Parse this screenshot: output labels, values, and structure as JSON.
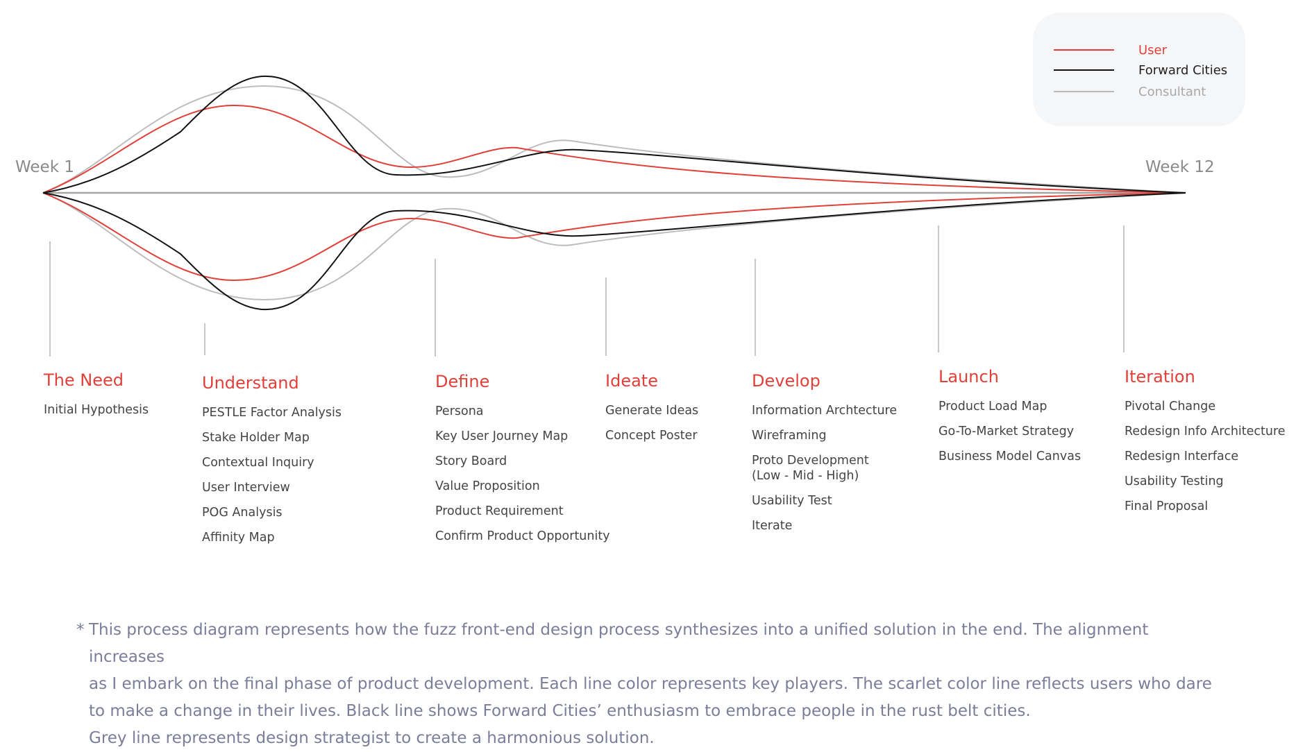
{
  "timeline": {
    "start_label": "Week 1",
    "end_label": "Week 12"
  },
  "legend": {
    "entries": [
      {
        "name": "User",
        "color": "#e0403a"
      },
      {
        "name": "Forward Cities",
        "color": "#111111"
      },
      {
        "name": "Consultant",
        "color": "#b9b9b9"
      }
    ]
  },
  "phases": [
    {
      "title": "The Need",
      "items": [
        "Initial Hypothesis"
      ]
    },
    {
      "title": "Understand",
      "items": [
        "PESTLE Factor Analysis",
        "Stake Holder Map",
        "Contextual Inquiry",
        "User Interview",
        "POG Analysis",
        "Affinity Map"
      ]
    },
    {
      "title": "Define",
      "items": [
        "Persona",
        "Key User Journey Map",
        "Story Board",
        "Value Proposition",
        "Product Requirement",
        "Confirm Product Opportunity"
      ]
    },
    {
      "title": "Ideate",
      "items": [
        "Generate Ideas",
        "Concept Poster"
      ]
    },
    {
      "title": "Develop",
      "items": [
        "Information Archtecture",
        "Wireframing",
        "Proto Development\n(Low - Mid - High)",
        "Usability Test",
        "Iterate"
      ]
    },
    {
      "title": "Launch",
      "items": [
        "Product Load Map",
        "Go-To-Market Strategy",
        "Business Model Canvas"
      ]
    },
    {
      "title": "Iteration",
      "items": [
        "Pivotal Change",
        "Redesign Info Architecture",
        "Redesign Interface",
        "Usability Testing",
        "Final Proposal"
      ]
    }
  ],
  "footnote": {
    "marker": "*",
    "lines": [
      "This process diagram represents how the fuzz front-end design process synthesizes into a unified solution in the end. The alignment increases",
      "as I embark on the final phase of product development. Each line color represents key players.  The scarlet color line reflects users who dare",
      "to make a change in their lives. Black line shows Forward Cities’ enthusiasm to embrace people in the rust belt cities.",
      "Grey line represents design strategist to create a harmonious solution."
    ]
  }
}
